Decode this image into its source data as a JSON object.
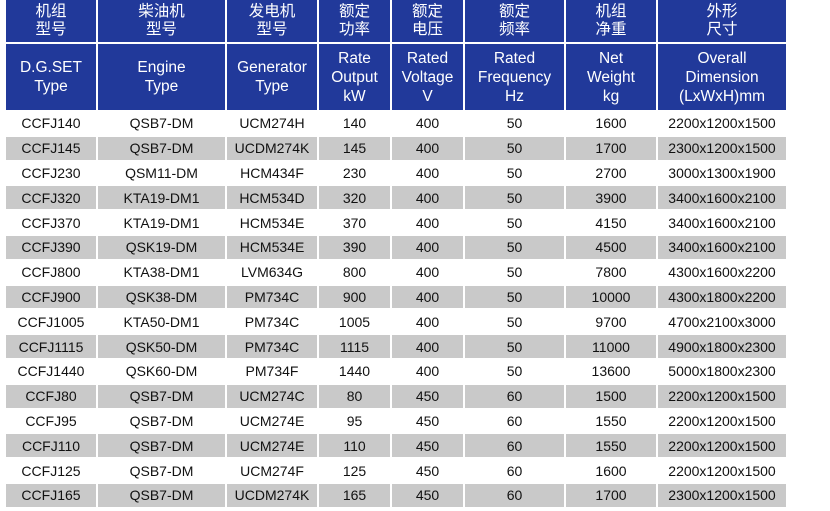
{
  "colors": {
    "header_bg": "#21399a",
    "header_text": "#ffffff",
    "alt_row_bg": "#c9c9c9",
    "text": "#111111"
  },
  "headers_cn": [
    [
      "机组",
      "型号"
    ],
    [
      "柴油机",
      "型号"
    ],
    [
      "发电机",
      "型号"
    ],
    [
      "额定",
      "功率"
    ],
    [
      "额定",
      "电压"
    ],
    [
      "额定",
      "频率"
    ],
    [
      "机组",
      "净重"
    ],
    [
      "外形",
      "尺寸"
    ]
  ],
  "headers_en": [
    [
      "D.G.SET",
      "Type"
    ],
    [
      "Engine",
      "Type"
    ],
    [
      "Generator",
      "Type"
    ],
    [
      "Rate",
      "Output",
      "kW"
    ],
    [
      "Rated",
      "Voltage",
      "V"
    ],
    [
      "Rated",
      "Frequency",
      "Hz"
    ],
    [
      "Net",
      "Weight",
      "kg"
    ],
    [
      "Overall",
      "Dimension",
      "(LxWxH)mm"
    ]
  ],
  "rows": [
    [
      "CCFJ140",
      "QSB7-DM",
      "UCM274H",
      "140",
      "400",
      "50",
      "1600",
      "2200x1200x1500"
    ],
    [
      "CCFJ145",
      "QSB7-DM",
      "UCDM274K",
      "145",
      "400",
      "50",
      "1700",
      "2300x1200x1500"
    ],
    [
      "CCFJ230",
      "QSM11-DM",
      "HCM434F",
      "230",
      "400",
      "50",
      "2700",
      "3000x1300x1900"
    ],
    [
      "CCFJ320",
      "KTA19-DM1",
      "HCM534D",
      "320",
      "400",
      "50",
      "3900",
      "3400x1600x2100"
    ],
    [
      "CCFJ370",
      "KTA19-DM1",
      "HCM534E",
      "370",
      "400",
      "50",
      "4150",
      "3400x1600x2100"
    ],
    [
      "CCFJ390",
      "QSK19-DM",
      "HCM534E",
      "390",
      "400",
      "50",
      "4500",
      "3400x1600x2100"
    ],
    [
      "CCFJ800",
      "KTA38-DM1",
      "LVM634G",
      "800",
      "400",
      "50",
      "7800",
      "4300x1600x2200"
    ],
    [
      "CCFJ900",
      "QSK38-DM",
      "PM734C",
      "900",
      "400",
      "50",
      "10000",
      "4300x1800x2200"
    ],
    [
      "CCFJ1005",
      "KTA50-DM1",
      "PM734C",
      "1005",
      "400",
      "50",
      "9700",
      "4700x2100x3000"
    ],
    [
      "CCFJ1115",
      "QSK50-DM",
      "PM734C",
      "1115",
      "400",
      "50",
      "11000",
      "4900x1800x2300"
    ],
    [
      "CCFJ1440",
      "QSK60-DM",
      "PM734F",
      "1440",
      "400",
      "50",
      "13600",
      "5000x1800x2300"
    ],
    [
      "CCFJ80",
      "QSB7-DM",
      "UCM274C",
      "80",
      "450",
      "60",
      "1500",
      "2200x1200x1500"
    ],
    [
      "CCFJ95",
      "QSB7-DM",
      "UCM274E",
      "95",
      "450",
      "60",
      "1550",
      "2200x1200x1500"
    ],
    [
      "CCFJ110",
      "QSB7-DM",
      "UCM274E",
      "110",
      "450",
      "60",
      "1550",
      "2200x1200x1500"
    ],
    [
      "CCFJ125",
      "QSB7-DM",
      "UCM274F",
      "125",
      "450",
      "60",
      "1600",
      "2200x1200x1500"
    ],
    [
      "CCFJ165",
      "QSB7-DM",
      "UCDM274K",
      "165",
      "450",
      "60",
      "1700",
      "2300x1200x1500"
    ]
  ]
}
